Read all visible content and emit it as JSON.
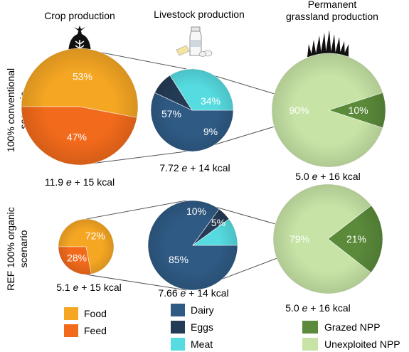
{
  "chart_data": {
    "type": "pie",
    "headers": {
      "crop": "Crop production",
      "livestock": "Livestock production",
      "grass_line1": "Permanent",
      "grass_line2": "grassland production"
    },
    "row_labels": {
      "conventional_line1": "100% conventional",
      "conventional_line2": "scenario",
      "organic_line1": "REF 100% organic",
      "organic_line2": "scenario"
    },
    "colors": {
      "food": "#f5a623",
      "feed": "#f26a1b",
      "dairy": "#2f5a84",
      "eggs": "#243b55",
      "meat": "#55dbe0",
      "grazed": "#5a8a3a",
      "unexploited": "#c7e4a6",
      "connector": "#555555"
    },
    "legend": {
      "crop": [
        {
          "label": "Food",
          "color": "#f5a623"
        },
        {
          "label": "Feed",
          "color": "#f26a1b"
        }
      ],
      "livestock": [
        {
          "label": "Dairy",
          "color": "#2f5a84"
        },
        {
          "label": "Eggs",
          "color": "#243b55"
        },
        {
          "label": "Meat",
          "color": "#55dbe0"
        }
      ],
      "grass": [
        {
          "label": "Grazed NPP",
          "color": "#5a8a3a"
        },
        {
          "label": "Unexploited NPP",
          "color": "#c7e4a6"
        }
      ]
    },
    "pies": [
      {
        "id": "conv-crop",
        "scenario": "100% conventional",
        "category": "Crop production",
        "total": {
          "a": "11.9",
          "e": "e",
          "b": "+ 15 kcal"
        },
        "slices": [
          {
            "name": "Food",
            "value": 53,
            "label": "53%",
            "color": "#f5a623"
          },
          {
            "name": "Feed",
            "value": 47,
            "label": "47%",
            "color": "#f26a1b"
          }
        ]
      },
      {
        "id": "conv-livestock",
        "scenario": "100% conventional",
        "category": "Livestock production",
        "total": {
          "a": "7.72",
          "e": "e",
          "b": "+ 14 kcal"
        },
        "slices": [
          {
            "name": "Dairy",
            "value": 57,
            "label": "57%",
            "color": "#2f5a84"
          },
          {
            "name": "Eggs",
            "value": 9,
            "label": "9%",
            "color": "#243b55"
          },
          {
            "name": "Meat",
            "value": 34,
            "label": "34%",
            "color": "#55dbe0"
          }
        ]
      },
      {
        "id": "conv-grass",
        "scenario": "100% conventional",
        "category": "Permanent grassland production",
        "total": {
          "a": "5.0",
          "e": "e",
          "b": "+ 16 kcal"
        },
        "slices": [
          {
            "name": "Grazed NPP",
            "value": 10,
            "label": "10%",
            "color": "#5a8a3a"
          },
          {
            "name": "Unexploited NPP",
            "value": 90,
            "label": "90%",
            "color": "#c7e4a6"
          }
        ]
      },
      {
        "id": "org-crop",
        "scenario": "REF 100% organic",
        "category": "Crop production",
        "total": {
          "a": "5.1",
          "e": "e",
          "b": "+ 15 kcal"
        },
        "slices": [
          {
            "name": "Food",
            "value": 72,
            "label": "72%",
            "color": "#f5a623"
          },
          {
            "name": "Feed",
            "value": 28,
            "label": "28%",
            "color": "#f26a1b"
          }
        ]
      },
      {
        "id": "org-livestock",
        "scenario": "REF 100% organic",
        "category": "Livestock production",
        "total": {
          "a": "7.66",
          "e": "e",
          "b": "+ 14 kcal"
        },
        "slices": [
          {
            "name": "Dairy",
            "value": 85,
            "label": "85%",
            "color": "#2f5a84"
          },
          {
            "name": "Eggs",
            "value": 5,
            "label": "5%",
            "color": "#243b55"
          },
          {
            "name": "Meat",
            "value": 10,
            "label": "10%",
            "color": "#55dbe0"
          }
        ]
      },
      {
        "id": "org-grass",
        "scenario": "REF 100% organic",
        "category": "Permanent grassland production",
        "total": {
          "a": "5.0",
          "e": "e",
          "b": "+ 16 kcal"
        },
        "slices": [
          {
            "name": "Grazed NPP",
            "value": 21,
            "label": "21%",
            "color": "#5a8a3a"
          },
          {
            "name": "Unexploited NPP",
            "value": 79,
            "label": "79%",
            "color": "#c7e4a6"
          }
        ]
      }
    ]
  }
}
